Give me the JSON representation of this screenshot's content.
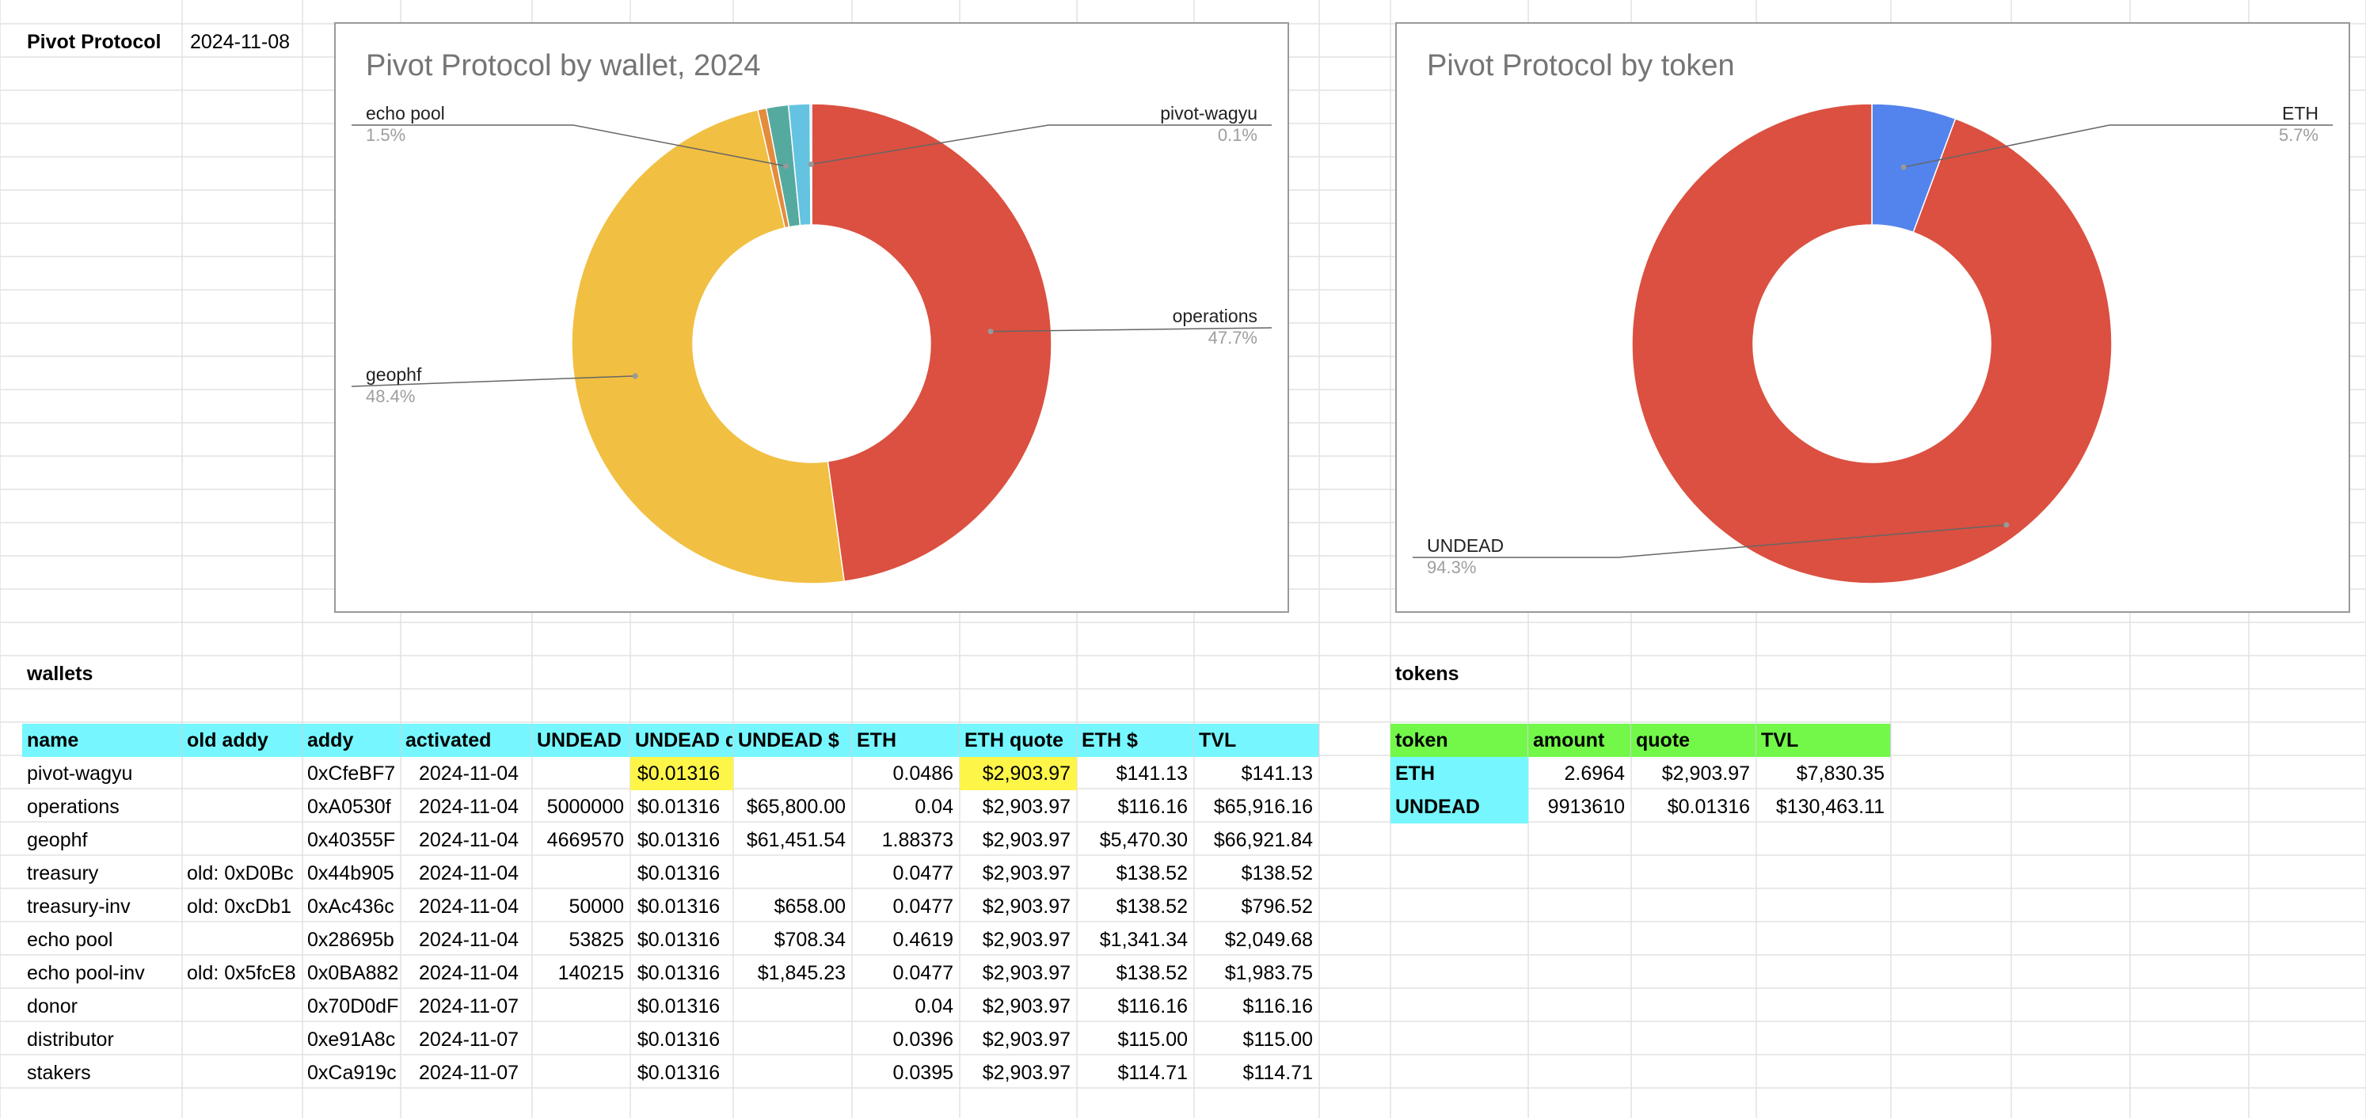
{
  "header": {
    "title": "Pivot Protocol",
    "date": "2024-11-08"
  },
  "wallets_section_label": "wallets",
  "tokens_section_label": "tokens",
  "wallets_table": {
    "columns": [
      "name",
      "old addy",
      "addy",
      "activated",
      "UNDEAD",
      "UNDEAD q",
      "UNDEAD $",
      "ETH",
      "ETH quote",
      "ETH $",
      "TVL"
    ],
    "rows": [
      [
        "pivot-wagyu",
        "",
        "0xCfeBF7",
        "2024-11-04",
        "",
        "$0.01316",
        "",
        "0.0486",
        "$2,903.97",
        "$141.13",
        "$141.13"
      ],
      [
        "operations",
        "",
        "0xA0530f",
        "2024-11-04",
        "5000000",
        "$0.01316",
        "$65,800.00",
        "0.04",
        "$2,903.97",
        "$116.16",
        "$65,916.16"
      ],
      [
        "geophf",
        "",
        "0x40355F",
        "2024-11-04",
        "4669570",
        "$0.01316",
        "$61,451.54",
        "1.88373",
        "$2,903.97",
        "$5,470.30",
        "$66,921.84"
      ],
      [
        "treasury",
        "old: 0xD0Bc",
        "0x44b905",
        "2024-11-04",
        "",
        "$0.01316",
        "",
        "0.0477",
        "$2,903.97",
        "$138.52",
        "$138.52"
      ],
      [
        "treasury-inv",
        "old: 0xcDb1",
        "0xAc436c",
        "2024-11-04",
        "50000",
        "$0.01316",
        "$658.00",
        "0.0477",
        "$2,903.97",
        "$138.52",
        "$796.52"
      ],
      [
        "echo pool",
        "",
        "0x28695b",
        "2024-11-04",
        "53825",
        "$0.01316",
        "$708.34",
        "0.4619",
        "$2,903.97",
        "$1,341.34",
        "$2,049.68"
      ],
      [
        "echo pool-inv",
        "old: 0x5fcE8",
        "0x0BA882",
        "2024-11-04",
        "140215",
        "$0.01316",
        "$1,845.23",
        "0.0477",
        "$2,903.97",
        "$138.52",
        "$1,983.75"
      ],
      [
        "donor",
        "",
        "0x70D0dF",
        "2024-11-07",
        "",
        "$0.01316",
        "",
        "0.04",
        "$2,903.97",
        "$116.16",
        "$116.16"
      ],
      [
        "distributor",
        "",
        "0xe91A8c",
        "2024-11-07",
        "",
        "$0.01316",
        "",
        "0.0396",
        "$2,903.97",
        "$115.00",
        "$115.00"
      ],
      [
        "stakers",
        "",
        "0xCa919c",
        "2024-11-07",
        "",
        "$0.01316",
        "",
        "0.0395",
        "$2,903.97",
        "$114.71",
        "$114.71"
      ]
    ]
  },
  "tokens_table": {
    "columns": [
      "token",
      "amount",
      "quote",
      "TVL"
    ],
    "rows": [
      [
        "ETH",
        "2.6964",
        "$2,903.97",
        "$7,830.35"
      ],
      [
        "UNDEAD",
        "9913610",
        "$0.01316",
        "$130,463.11"
      ]
    ]
  },
  "chart_data": [
    {
      "type": "pie",
      "title": "Pivot Protocol by wallet, 2024",
      "labels": [
        "operations",
        "geophf",
        "treasury-inv",
        "echo pool",
        "echo pool-inv",
        "pivot-wagyu"
      ],
      "values": [
        65916.16,
        66921.84,
        796.52,
        2049.68,
        1983.75,
        141.13
      ],
      "colors": [
        "#db5040",
        "#f1bf42",
        "#e38c3c",
        "#55aaa0",
        "#64c3e0",
        "#8aa6f2"
      ],
      "callouts": [
        {
          "label": "echo pool",
          "pct": "1.5%"
        },
        {
          "label": "pivot-wagyu",
          "pct": "0.1%"
        },
        {
          "label": "operations",
          "pct": "47.7%"
        },
        {
          "label": "geophf",
          "pct": "48.4%"
        }
      ]
    },
    {
      "type": "pie",
      "title": "Pivot Protocol by token",
      "labels": [
        "ETH",
        "UNDEAD"
      ],
      "values": [
        7830.35,
        130463.11
      ],
      "colors": [
        "#5383ec",
        "#db5040"
      ],
      "callouts": [
        {
          "label": "ETH",
          "pct": "5.7%"
        },
        {
          "label": "UNDEAD",
          "pct": "94.3%"
        }
      ]
    }
  ]
}
